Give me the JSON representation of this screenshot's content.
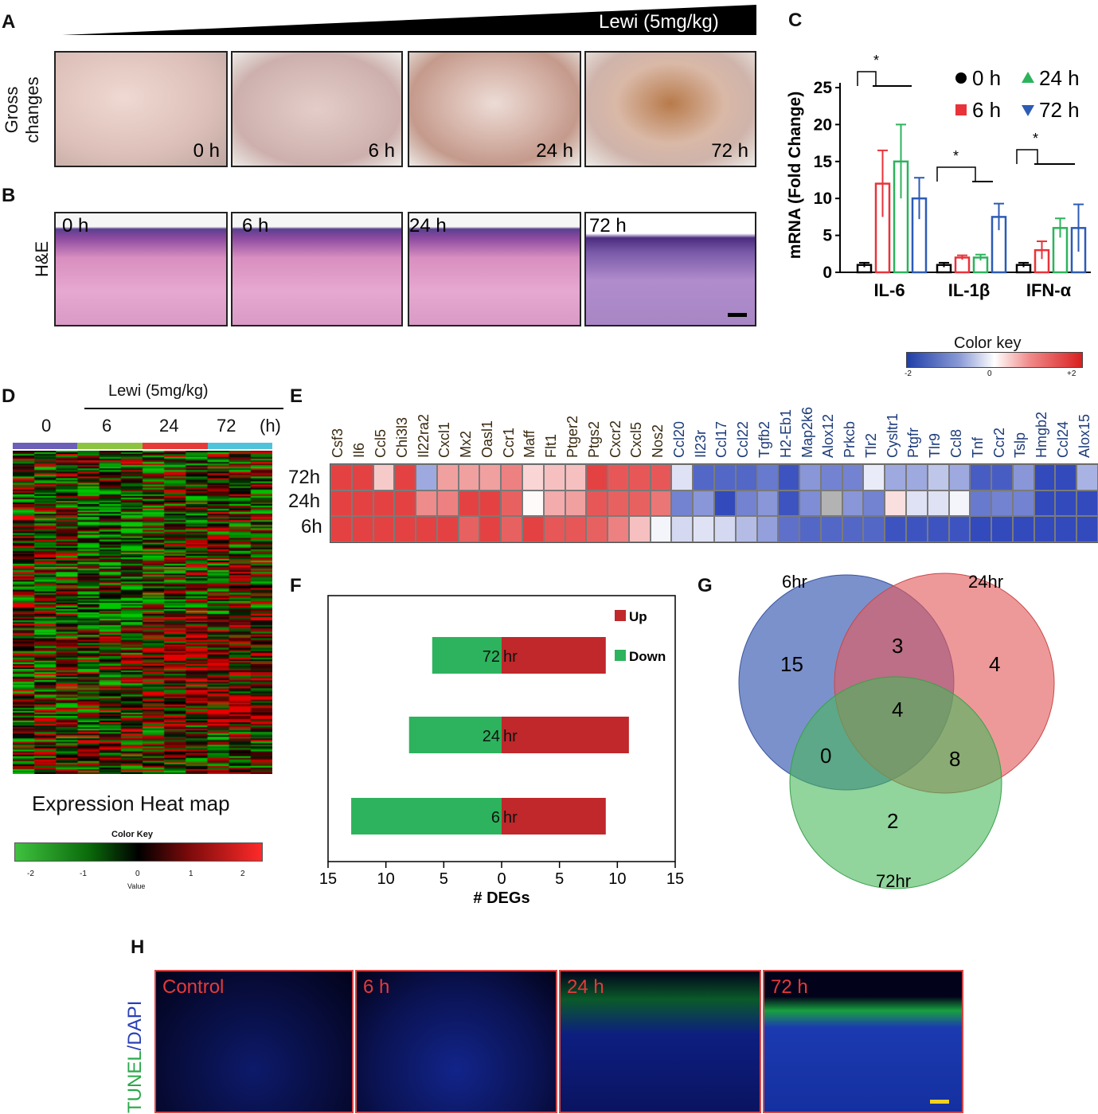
{
  "panels": {
    "A": "A",
    "B": "B",
    "C": "C",
    "D": "D",
    "E": "E",
    "F": "F",
    "G": "G",
    "H": "H"
  },
  "panel_a": {
    "dose_label": "Lewi (5mg/kg)",
    "row_label_1": "Gross",
    "row_label_2": "changes",
    "times": [
      "0 h",
      "6 h",
      "24 h",
      "72 h"
    ]
  },
  "panel_b": {
    "row_label": "H&E",
    "times": [
      "0 h",
      "6 h",
      "24 h",
      "72 h"
    ]
  },
  "panel_c": {
    "ylabel": "mRNA (Fold Change)",
    "star": "*"
  },
  "panel_d": {
    "dose_label": "Lewi (5mg/kg)",
    "groups": [
      "0",
      "6",
      "24",
      "72"
    ],
    "unit": "(h)",
    "group_colors": [
      "#6b5fb8",
      "#8cc43f",
      "#e63a3a",
      "#4fc3d9"
    ],
    "title": "Expression Heat map",
    "key_title": "Color Key",
    "key_ticks": [
      "-2",
      "-1",
      "0",
      "1",
      "2"
    ],
    "key_label": "Value"
  },
  "panel_e": {
    "key_title": "Color key",
    "key_ticks": [
      "-2",
      "0",
      "+2"
    ],
    "rows": [
      "72h",
      "24h",
      "6h"
    ],
    "genes": [
      "Csf3",
      "Il6",
      "Ccl5",
      "Chi3l3",
      "Il22ra2",
      "Cxcl1",
      "Mx2",
      "Oasl1",
      "Ccr1",
      "Maff",
      "Flt1",
      "Ptger2",
      "Ptgs2",
      "Cxcr2",
      "Cxcl5",
      "Nos2",
      "Ccl20",
      "Il23r",
      "Ccl17",
      "Ccl22",
      "Tgfb2",
      "H2-Eb1",
      "Map2k6",
      "Alox12",
      "Prkcb",
      "Tlr2",
      "Cysltr1",
      "Ptgfr",
      "Tlr9",
      "Ccl8",
      "Tnf",
      "Ccr2",
      "Tslp",
      "Hmgb2",
      "Ccl24",
      "Alox15"
    ],
    "values": [
      [
        1.8,
        1.8,
        0.5,
        1.8,
        -0.9,
        0.9,
        0.9,
        0.9,
        1.2,
        0.4,
        0.6,
        0.6,
        1.8,
        1.6,
        1.6,
        1.6,
        -0.3,
        -1.6,
        -1.6,
        -1.6,
        -1.4,
        -1.8,
        -1.1,
        -1.3,
        -1.3,
        -0.2,
        -0.9,
        -0.9,
        -0.6,
        -0.9,
        -1.7,
        -1.7,
        -1.1,
        -1.9,
        -1.9,
        -0.8
      ],
      [
        1.8,
        1.8,
        1.8,
        1.8,
        1.1,
        1.2,
        1.8,
        1.8,
        1.5,
        0.05,
        0.8,
        0.9,
        1.6,
        1.5,
        1.5,
        1.3,
        -1.3,
        -1.1,
        -1.9,
        -1.3,
        -1.1,
        -1.8,
        -1.2,
        null,
        -1.1,
        -1.3,
        0.3,
        -0.3,
        -0.3,
        -0.1,
        -1.4,
        -1.3,
        -1.3,
        -1.9,
        -1.9,
        -1.9
      ],
      [
        1.8,
        1.8,
        1.8,
        1.8,
        1.8,
        1.8,
        1.5,
        1.8,
        1.5,
        1.8,
        1.6,
        1.6,
        1.5,
        1.2,
        0.6,
        -0.1,
        -0.4,
        -0.3,
        -0.4,
        -0.7,
        -1.0,
        -1.5,
        -1.6,
        -1.6,
        -1.6,
        -1.6,
        -1.8,
        -1.8,
        -1.8,
        -1.8,
        -1.9,
        -1.9,
        -1.9,
        -1.9,
        -1.9,
        -1.9
      ]
    ]
  },
  "panel_f": {
    "xlabel": "# DEGs",
    "legend_up": "Up",
    "legend_down": "Down",
    "up_color": "#c0282b",
    "down_color": "#2db35d",
    "bars": [
      {
        "label": "72 hr",
        "down": 6,
        "up": 9
      },
      {
        "label": "24 hr",
        "down": 8,
        "up": 11
      },
      {
        "label": "6 hr",
        "down": 13,
        "up": 9
      }
    ],
    "ticks": [
      "15",
      "10",
      "5",
      "0",
      "5",
      "10",
      "15"
    ]
  },
  "panel_g": {
    "sets": [
      "6hr",
      "24hr",
      "72hr"
    ],
    "regions": {
      "only_6": "15",
      "only_24": "4",
      "only_72": "2",
      "6_24": "3",
      "6_72": "0",
      "24_72": "8",
      "all": "4"
    }
  },
  "panel_h": {
    "ylabel_tunel": "TUNEL",
    "ylabel_slash": "/",
    "ylabel_dapi": "DAPI",
    "times": [
      "Control",
      "6 h",
      "24 h",
      "72 h"
    ]
  },
  "chart_data": [
    {
      "type": "bar",
      "panel": "C",
      "title": "",
      "xlabel": "",
      "ylabel": "mRNA (Fold Change)",
      "ylim": [
        0,
        25
      ],
      "yticks": [
        "0",
        "5",
        "10",
        "15",
        "20",
        "25"
      ],
      "categories": [
        "IL-6",
        "IL-1β",
        "IFN-α"
      ],
      "series": [
        {
          "name": "0 h",
          "color": "#000000",
          "values": [
            1,
            1,
            1
          ],
          "errors": [
            0.3,
            0.3,
            0.3
          ]
        },
        {
          "name": "6 h",
          "color": "#e8333a",
          "values": [
            12,
            2,
            3
          ],
          "errors": [
            4.5,
            0.3,
            1.2
          ]
        },
        {
          "name": "24 h",
          "color": "#2db35d",
          "values": [
            15,
            2,
            6
          ],
          "errors": [
            5,
            0.4,
            1.3
          ]
        },
        {
          "name": "72 h",
          "color": "#2d5bb5",
          "values": [
            10,
            7.5,
            6
          ],
          "errors": [
            2.8,
            1.8,
            3.2
          ]
        }
      ],
      "legend_position": "top-right"
    },
    {
      "type": "bar",
      "panel": "F",
      "title": "",
      "xlabel": "# DEGs",
      "ylabel": "",
      "xlim": [
        -15,
        15
      ],
      "categories": [
        "72 hr",
        "24 hr",
        "6 hr"
      ],
      "series": [
        {
          "name": "Up",
          "values": [
            9,
            11,
            9
          ]
        },
        {
          "name": "Down",
          "values": [
            6,
            8,
            13
          ]
        }
      ],
      "legend_position": "top-right"
    }
  ]
}
